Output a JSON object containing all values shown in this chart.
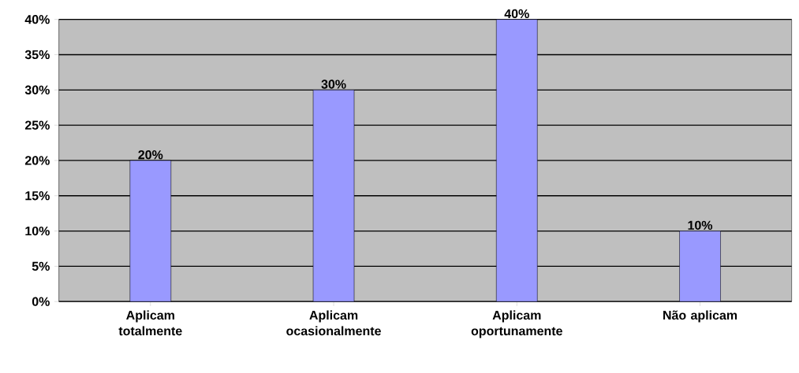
{
  "chart_data": {
    "type": "bar",
    "categories": [
      "Aplicam totalmente",
      "Aplicam ocasionalmente",
      "Aplicam oportunamente",
      "Não aplicam"
    ],
    "values": [
      20,
      30,
      40,
      10
    ],
    "value_labels": [
      "20%",
      "30%",
      "40%",
      "10%"
    ],
    "color": "#9999ff",
    "ylim": [
      0,
      40
    ],
    "yticks": [
      {
        "value": 0,
        "label": "0%"
      },
      {
        "value": 5,
        "label": "5%"
      },
      {
        "value": 10,
        "label": "10%"
      },
      {
        "value": 15,
        "label": "15%"
      },
      {
        "value": 20,
        "label": "20%"
      },
      {
        "value": 25,
        "label": "25%"
      },
      {
        "value": 30,
        "label": "30%"
      },
      {
        "value": 35,
        "label": "35%"
      },
      {
        "value": 40,
        "label": "40%"
      }
    ],
    "grid": "y"
  }
}
